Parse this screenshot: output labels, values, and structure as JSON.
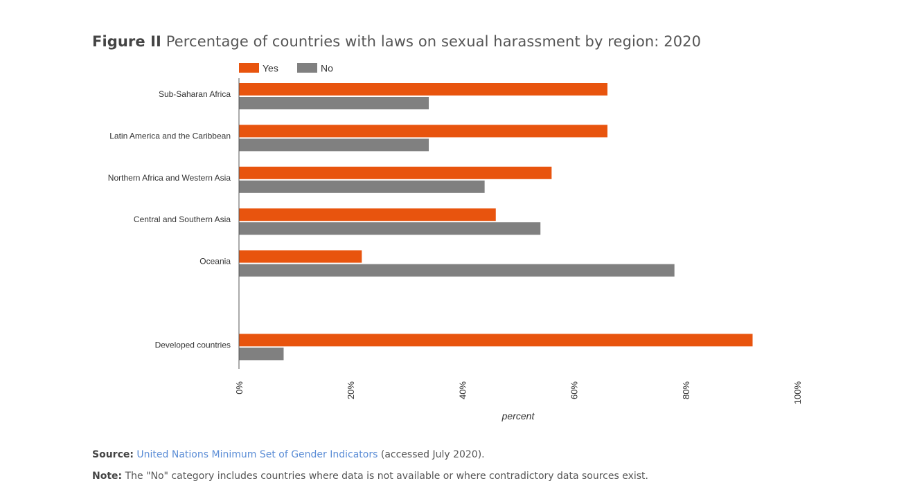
{
  "title": {
    "prefix": "Figure II",
    "text": "Percentage of countries with laws on sexual harassment by region: 2020"
  },
  "chart_data": {
    "type": "bar",
    "orientation": "horizontal",
    "categories": [
      "Sub-Saharan Africa",
      "Latin America and the Caribbean",
      "Northern Africa and Western Asia",
      "Central and Southern Asia",
      "Oceania",
      "",
      "Developed countries"
    ],
    "series": [
      {
        "name": "Yes",
        "color": "#e8540e",
        "values": [
          66,
          66,
          56,
          46,
          22,
          null,
          92
        ]
      },
      {
        "name": "No",
        "color": "#808080",
        "values": [
          34,
          34,
          44,
          54,
          78,
          null,
          8
        ]
      }
    ],
    "xlim": [
      0,
      100
    ],
    "xticks": [
      "0%",
      "20%",
      "40%",
      "60%",
      "80%",
      "100%"
    ],
    "xlabel": "percent",
    "ylabel": "",
    "legend": "top-left",
    "grid": false
  },
  "footer": {
    "source_label": "Source:",
    "source_link": "United Nations Minimum Set of Gender Indicators",
    "source_suffix": " (accessed July 2020).",
    "note_label": "Note:",
    "note_text": " The \"No\" category includes countries where data is not available or where contradictory data sources exist."
  }
}
